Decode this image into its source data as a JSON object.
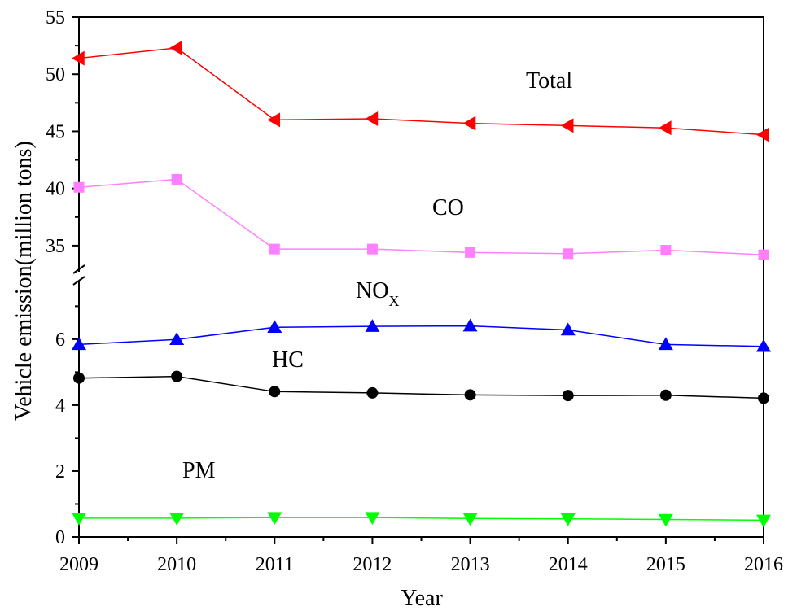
{
  "chart_data": {
    "type": "line",
    "xlabel": "Year",
    "ylabel": "Vehicle emission(million tons)",
    "x": [
      2009,
      2010,
      2011,
      2012,
      2013,
      2014,
      2015,
      2016
    ],
    "xlim": [
      2009,
      2016
    ],
    "axis_break": true,
    "upper_panel": {
      "ylim": [
        33,
        55
      ],
      "ticks": [
        35,
        40,
        45,
        50,
        55
      ]
    },
    "lower_panel": {
      "ylim": [
        0,
        7.7
      ],
      "ticks": [
        0,
        2,
        4,
        6
      ]
    },
    "grid": false,
    "legend": "none",
    "series": [
      {
        "name": "Total",
        "panel": "upper",
        "color": "#ff0000",
        "marker": "triangle-left",
        "values": [
          51.4,
          52.3,
          46.0,
          46.1,
          45.7,
          45.5,
          45.3,
          44.7
        ]
      },
      {
        "name": "CO",
        "panel": "upper",
        "color": "#ff80ff",
        "marker": "square",
        "values": [
          40.1,
          40.8,
          34.7,
          34.7,
          34.4,
          34.3,
          34.6,
          34.2
        ]
      },
      {
        "name": "NOX",
        "panel": "lower",
        "color": "#0000ff",
        "marker": "triangle-up",
        "values": [
          5.84,
          5.99,
          6.36,
          6.39,
          6.4,
          6.28,
          5.84,
          5.78
        ]
      },
      {
        "name": "HC",
        "panel": "lower",
        "color": "#000000",
        "marker": "circle",
        "values": [
          4.82,
          4.87,
          4.41,
          4.37,
          4.31,
          4.29,
          4.3,
          4.21
        ]
      },
      {
        "name": "PM",
        "panel": "lower",
        "color": "#00ff00",
        "marker": "triangle-down",
        "values": [
          0.57,
          0.57,
          0.59,
          0.59,
          0.56,
          0.55,
          0.53,
          0.51
        ]
      }
    ],
    "annotations": [
      {
        "text": "Total",
        "series": "Total"
      },
      {
        "text": "CO",
        "series": "CO"
      },
      {
        "text": "NO",
        "sub": "X",
        "series": "NOX"
      },
      {
        "text": "HC",
        "series": "HC"
      },
      {
        "text": "PM",
        "series": "PM"
      }
    ]
  }
}
